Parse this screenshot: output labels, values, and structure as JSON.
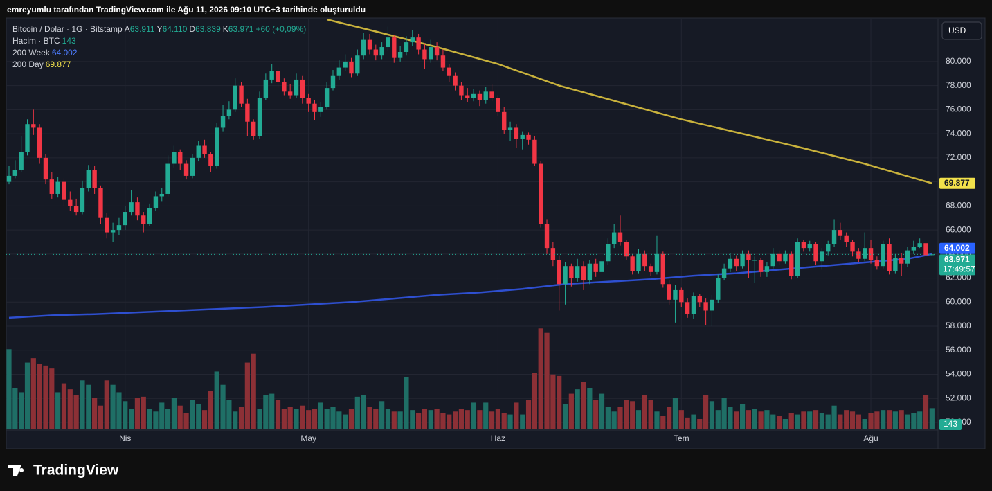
{
  "chart_data": {
    "type": "candlestick",
    "title": "emreyumlu tarafından TradingView.com ile Ağu 11, 2026 09:10 UTC+3 tarihinde oluşturuldu",
    "brand": "TradingView",
    "currency": "USD",
    "symbol": "Bitcoin / Dolar · 1G · Bitstamp",
    "ohlc_legend": [
      {
        "key": "A",
        "text": "63.911"
      },
      {
        "key": "Y",
        "text": "64.110"
      },
      {
        "key": "D",
        "text": "63.839"
      },
      {
        "key": "K",
        "text": "63.971"
      }
    ],
    "change": "+60 (+0,09%)",
    "up_color": "#22ab94",
    "down_color": "#f23645",
    "ylim": [
      49425,
      83563
    ],
    "yticks": [
      {
        "value": 50000,
        "label": "50.000"
      },
      {
        "value": 52000,
        "label": "52.000"
      },
      {
        "value": 54000,
        "label": "54.000"
      },
      {
        "value": 56000,
        "label": "56.000"
      },
      {
        "value": 58000,
        "label": "58.000"
      },
      {
        "value": 60000,
        "label": "60.000"
      },
      {
        "value": 62000,
        "label": "62.000"
      },
      {
        "value": 64000,
        "label": "64.000"
      },
      {
        "value": 66000,
        "label": "66.000"
      },
      {
        "value": 68000,
        "label": "68.000"
      },
      {
        "value": 70000,
        "label": "70.000"
      },
      {
        "value": 72000,
        "label": "72.000"
      },
      {
        "value": 74000,
        "label": "74.000"
      },
      {
        "value": 76000,
        "label": "76.000"
      },
      {
        "value": 78000,
        "label": "78.000"
      },
      {
        "value": 80000,
        "label": "80.000"
      }
    ],
    "xlim": [
      0,
      151
    ],
    "xticks": [
      {
        "value": 19,
        "label": "Nis"
      },
      {
        "value": 49,
        "label": "May"
      },
      {
        "value": 80,
        "label": "Haz"
      },
      {
        "value": 110,
        "label": "Tem"
      },
      {
        "value": 141,
        "label": "Ağu"
      }
    ],
    "grid": true,
    "candles": [
      [
        70000,
        71300,
        69800,
        70500
      ],
      [
        70500,
        71800,
        70300,
        71000
      ],
      [
        71000,
        73800,
        70800,
        72500
      ],
      [
        72500,
        75200,
        72200,
        74800
      ],
      [
        74800,
        76000,
        73900,
        74500
      ],
      [
        74500,
        74800,
        71500,
        72000
      ],
      [
        72000,
        72300,
        69800,
        70200
      ],
      [
        70200,
        70800,
        68600,
        69000
      ],
      [
        69000,
        70400,
        68700,
        70000
      ],
      [
        70000,
        70300,
        68000,
        68500
      ],
      [
        68500,
        69200,
        67600,
        68000
      ],
      [
        68000,
        68600,
        67200,
        67500
      ],
      [
        67500,
        70100,
        67300,
        69500
      ],
      [
        69500,
        71400,
        69200,
        71000
      ],
      [
        71000,
        71300,
        69000,
        69500
      ],
      [
        69500,
        69700,
        66500,
        67000
      ],
      [
        67000,
        67400,
        65300,
        65800
      ],
      [
        65800,
        66600,
        65000,
        66000
      ],
      [
        66000,
        67000,
        65600,
        66400
      ],
      [
        66400,
        68000,
        66000,
        67500
      ],
      [
        67500,
        69300,
        67200,
        68300
      ],
      [
        68300,
        68700,
        66800,
        67200
      ],
      [
        67200,
        67500,
        65800,
        66500
      ],
      [
        66500,
        68200,
        66300,
        67800
      ],
      [
        67800,
        69200,
        67600,
        68800
      ],
      [
        68800,
        69500,
        68400,
        69000
      ],
      [
        69000,
        72200,
        68800,
        71500
      ],
      [
        71500,
        73000,
        71200,
        72500
      ],
      [
        72500,
        72700,
        71000,
        71500
      ],
      [
        71500,
        71800,
        70200,
        70500
      ],
      [
        70500,
        72300,
        70300,
        72000
      ],
      [
        72000,
        73400,
        71700,
        73000
      ],
      [
        73000,
        73500,
        72000,
        72300
      ],
      [
        72300,
        72500,
        70800,
        71300
      ],
      [
        71300,
        74900,
        71100,
        74500
      ],
      [
        74500,
        76400,
        74200,
        75500
      ],
      [
        75500,
        76700,
        75200,
        76000
      ],
      [
        76000,
        78600,
        75800,
        78000
      ],
      [
        78000,
        78300,
        76200,
        76500
      ],
      [
        76500,
        76900,
        73800,
        75000
      ],
      [
        75000,
        75200,
        73500,
        73800
      ],
      [
        73800,
        77500,
        73600,
        77000
      ],
      [
        77000,
        79000,
        76800,
        78500
      ],
      [
        78500,
        79800,
        78200,
        79200
      ],
      [
        79200,
        79500,
        77800,
        78300
      ],
      [
        78300,
        78600,
        77200,
        77500
      ],
      [
        77500,
        78100,
        76900,
        77200
      ],
      [
        77200,
        79000,
        77000,
        78500
      ],
      [
        78500,
        78800,
        76500,
        77000
      ],
      [
        77000,
        77300,
        75800,
        76500
      ],
      [
        76500,
        76800,
        75100,
        75800
      ],
      [
        75800,
        76600,
        75400,
        76200
      ],
      [
        76200,
        78300,
        76000,
        77800
      ],
      [
        77800,
        79300,
        77600,
        78800
      ],
      [
        78800,
        80100,
        78500,
        79500
      ],
      [
        79500,
        80600,
        79200,
        80000
      ],
      [
        80000,
        80300,
        78700,
        79000
      ],
      [
        79000,
        81000,
        78800,
        80500
      ],
      [
        80500,
        82400,
        80200,
        81800
      ],
      [
        81800,
        82300,
        80600,
        81000
      ],
      [
        81000,
        81400,
        80100,
        80500
      ],
      [
        80500,
        81600,
        80200,
        81200
      ],
      [
        81200,
        82900,
        80900,
        82000
      ],
      [
        82000,
        82200,
        79900,
        80300
      ],
      [
        80300,
        81300,
        80000,
        80800
      ],
      [
        80800,
        82100,
        80500,
        81600
      ],
      [
        81600,
        82600,
        81300,
        82000
      ],
      [
        82000,
        82300,
        80600,
        81000
      ],
      [
        81000,
        81500,
        79400,
        80200
      ],
      [
        80200,
        81800,
        79900,
        81200
      ],
      [
        81200,
        81600,
        80100,
        80500
      ],
      [
        80500,
        81000,
        79200,
        79500
      ],
      [
        79500,
        79800,
        78300,
        78800
      ],
      [
        78800,
        79100,
        77600,
        78000
      ],
      [
        78000,
        78300,
        76800,
        77200
      ],
      [
        77200,
        77800,
        76600,
        77000
      ],
      [
        77000,
        77700,
        76700,
        77300
      ],
      [
        77300,
        77600,
        76300,
        76800
      ],
      [
        76800,
        77900,
        76500,
        77500
      ],
      [
        77500,
        78100,
        76700,
        77000
      ],
      [
        77000,
        77200,
        75500,
        75800
      ],
      [
        75800,
        76200,
        74000,
        74300
      ],
      [
        74300,
        75000,
        73400,
        74500
      ],
      [
        74500,
        74800,
        72800,
        73600
      ],
      [
        73600,
        74200,
        72700,
        73900
      ],
      [
        73900,
        74100,
        73100,
        73500
      ],
      [
        73500,
        73800,
        71300,
        71500
      ],
      [
        71500,
        71700,
        66200,
        66500
      ],
      [
        66500,
        66900,
        64000,
        64500
      ],
      [
        64500,
        65000,
        63000,
        63500
      ],
      [
        63500,
        63900,
        59300,
        61500
      ],
      [
        61500,
        63300,
        59800,
        63000
      ],
      [
        63000,
        63200,
        61300,
        62000
      ],
      [
        62000,
        63600,
        61700,
        63000
      ],
      [
        63000,
        63400,
        61000,
        61800
      ],
      [
        61800,
        63500,
        61500,
        63200
      ],
      [
        63200,
        63600,
        62100,
        62500
      ],
      [
        62500,
        63900,
        62200,
        63400
      ],
      [
        63400,
        65300,
        63100,
        64800
      ],
      [
        64800,
        66500,
        64500,
        65800
      ],
      [
        65800,
        67200,
        64700,
        65000
      ],
      [
        65000,
        65200,
        63500,
        63800
      ],
      [
        63800,
        64000,
        62300,
        62600
      ],
      [
        62600,
        64400,
        62400,
        64000
      ],
      [
        64000,
        64300,
        62600,
        63000
      ],
      [
        63000,
        63200,
        62200,
        62500
      ],
      [
        62500,
        65500,
        62300,
        64000
      ],
      [
        64000,
        64200,
        61200,
        61500
      ],
      [
        61500,
        61800,
        59800,
        60200
      ],
      [
        60200,
        61400,
        58300,
        61000
      ],
      [
        61000,
        61200,
        59600,
        60000
      ],
      [
        60000,
        60300,
        58700,
        59000
      ],
      [
        59000,
        60800,
        58600,
        60500
      ],
      [
        60500,
        60700,
        59600,
        60000
      ],
      [
        60000,
        60300,
        58100,
        59300
      ],
      [
        59300,
        60600,
        58000,
        60200
      ],
      [
        60200,
        62300,
        59900,
        62000
      ],
      [
        62000,
        63200,
        61800,
        62800
      ],
      [
        62800,
        64100,
        62500,
        63600
      ],
      [
        63600,
        63900,
        62600,
        63000
      ],
      [
        63000,
        64300,
        62800,
        64000
      ],
      [
        64000,
        64300,
        62000,
        63500
      ],
      [
        63500,
        63800,
        61600,
        63500
      ],
      [
        63500,
        63700,
        62100,
        62500
      ],
      [
        62500,
        63300,
        62100,
        63000
      ],
      [
        63000,
        64500,
        62800,
        64000
      ],
      [
        64000,
        64300,
        63100,
        63400
      ],
      [
        63400,
        64300,
        63200,
        64000
      ],
      [
        64000,
        64200,
        61900,
        62200
      ],
      [
        62200,
        65300,
        62000,
        65000
      ],
      [
        65000,
        65200,
        64200,
        64500
      ],
      [
        64500,
        65100,
        64200,
        64800
      ],
      [
        64800,
        65000,
        63100,
        63400
      ],
      [
        63400,
        64500,
        62700,
        64200
      ],
      [
        64200,
        65100,
        63900,
        64800
      ],
      [
        64800,
        66900,
        64600,
        66000
      ],
      [
        66000,
        66600,
        65200,
        65500
      ],
      [
        65500,
        65800,
        64600,
        65000
      ],
      [
        65000,
        65200,
        63800,
        64200
      ],
      [
        64200,
        64500,
        63300,
        63600
      ],
      [
        63600,
        65800,
        63400,
        64500
      ],
      [
        64500,
        65200,
        63200,
        63500
      ],
      [
        63500,
        63800,
        62700,
        63000
      ],
      [
        63000,
        65100,
        62800,
        64800
      ],
      [
        64800,
        65300,
        62300,
        62600
      ],
      [
        62600,
        64000,
        62400,
        63700
      ],
      [
        63700,
        64100,
        62200,
        63200
      ],
      [
        63200,
        64600,
        62900,
        64300
      ],
      [
        64300,
        65100,
        64000,
        64600
      ],
      [
        64600,
        65300,
        64500,
        64900
      ],
      [
        64900,
        65400,
        63700,
        63911
      ],
      [
        63911,
        64110,
        63839,
        63971
      ]
    ],
    "volume": {
      "name": "Hacim · BTC",
      "legend_value": "143",
      "up_color": "#1f6f66",
      "down_color": "#8c3036",
      "vlim": [
        0,
        700
      ],
      "values": [
        540,
        280,
        250,
        450,
        480,
        440,
        430,
        410,
        250,
        310,
        270,
        230,
        330,
        300,
        210,
        160,
        330,
        300,
        250,
        190,
        140,
        210,
        220,
        140,
        120,
        180,
        140,
        210,
        160,
        110,
        200,
        170,
        130,
        260,
        390,
        300,
        200,
        120,
        150,
        450,
        510,
        140,
        230,
        240,
        200,
        140,
        150,
        140,
        160,
        130,
        140,
        180,
        140,
        150,
        120,
        100,
        140,
        220,
        230,
        150,
        140,
        190,
        140,
        120,
        120,
        350,
        130,
        110,
        140,
        130,
        140,
        110,
        100,
        120,
        140,
        130,
        180,
        130,
        180,
        120,
        140,
        110,
        100,
        180,
        100,
        200,
        380,
        680,
        650,
        370,
        360,
        170,
        240,
        270,
        320,
        280,
        200,
        240,
        150,
        120,
        150,
        200,
        190,
        130,
        230,
        200,
        120,
        90,
        150,
        210,
        130,
        80,
        100,
        70,
        230,
        190,
        130,
        210,
        150,
        120,
        170,
        130,
        140,
        120,
        130,
        100,
        90,
        70,
        110,
        100,
        120,
        120,
        130,
        110,
        100,
        160,
        100,
        130,
        120,
        100,
        70,
        110,
        120,
        130,
        130,
        120,
        130,
        100,
        110,
        120,
        230,
        143
      ]
    },
    "series": [
      {
        "name": "200 Week",
        "legend_value": "64.002",
        "color": "#2e4fd0",
        "x": [
          0,
          7,
          14,
          21,
          28,
          35,
          42,
          49,
          56,
          63,
          70,
          77,
          84,
          91,
          98,
          105,
          112,
          119,
          126,
          133,
          140,
          147,
          151
        ],
        "values": [
          58700,
          58900,
          59000,
          59150,
          59300,
          59450,
          59600,
          59800,
          60000,
          60300,
          60600,
          60800,
          61100,
          61500,
          61700,
          61900,
          62200,
          62400,
          62700,
          63000,
          63300,
          63600,
          64002
        ]
      },
      {
        "name": "200 Day",
        "legend_value": "69.877",
        "color": "#c9b23c",
        "x": [
          52,
          60,
          70,
          80,
          90,
          100,
          110,
          120,
          130,
          140,
          151
        ],
        "values": [
          83500,
          82500,
          81200,
          79800,
          78000,
          76600,
          75200,
          74000,
          72800,
          71500,
          69877
        ]
      }
    ],
    "price_labels": [
      {
        "value": 69877,
        "text": "69.877",
        "color": "#f2e14b",
        "text_color": "#131722"
      },
      {
        "value": 64002,
        "text": "64.002",
        "color": "#2962ff",
        "text_color": "#ffffff"
      },
      {
        "value": 63971,
        "text": "63.971",
        "sub": "17:49:57",
        "color": "#22ab94",
        "text_color": "#ffffff"
      }
    ]
  }
}
